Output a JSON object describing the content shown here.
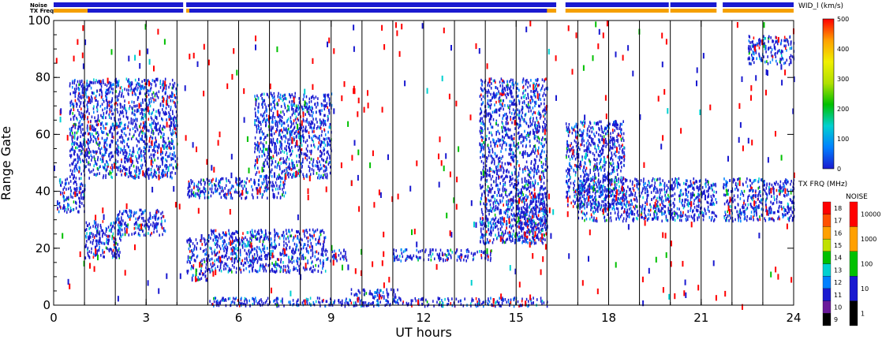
{
  "chart_data": {
    "type": "heatmap",
    "xlabel": "UT hours",
    "ylabel": "Range Gate",
    "xlim": [
      0,
      24
    ],
    "ylim": [
      0,
      100
    ],
    "xticks": [
      "0",
      "3",
      "6",
      "9",
      "12",
      "15",
      "18",
      "21",
      "24"
    ],
    "yticks": [
      "0",
      "20",
      "40",
      "60",
      "80",
      "100"
    ],
    "top_bars": {
      "noise_label": "Noise",
      "txfreq_label": "TX Freq",
      "noise_color": "#1a1ad0",
      "txfreq_color": "#f5a000",
      "segments_hours": [
        [
          0,
          4.2
        ],
        [
          4.3,
          16.3
        ],
        [
          16.6,
          19.95
        ],
        [
          20.0,
          21.5
        ],
        [
          21.7,
          24.0
        ]
      ]
    },
    "scan_boundaries_hours": [
      1.0,
      2.0,
      3.0,
      4.0,
      5.0,
      6.0,
      7.0,
      8.0,
      9.0,
      10.0,
      11.0,
      12.0,
      13.0,
      14.0,
      15.0,
      16.0,
      17.0,
      18.0,
      19.0,
      20.0,
      21.0,
      22.0,
      23.0
    ],
    "data_gaps_hours": [
      [
        16.3,
        16.6
      ],
      [
        21.5,
        21.7
      ]
    ],
    "scatter_regions": [
      {
        "x": [
          0.1,
          1.0
        ],
        "y": [
          33,
          45
        ]
      },
      {
        "x": [
          1.0,
          2.2
        ],
        "y": [
          17,
          30
        ]
      },
      {
        "x": [
          2.0,
          3.6
        ],
        "y": [
          25,
          34
        ]
      },
      {
        "x": [
          0.5,
          4.0
        ],
        "y": [
          45,
          80
        ]
      },
      {
        "x": [
          4.3,
          5.0
        ],
        "y": [
          9,
          24
        ]
      },
      {
        "x": [
          5.0,
          8.8
        ],
        "y": [
          12,
          27
        ]
      },
      {
        "x": [
          8.8,
          9.5
        ],
        "y": [
          16,
          20
        ]
      },
      {
        "x": [
          4.3,
          7.5
        ],
        "y": [
          38,
          45
        ]
      },
      {
        "x": [
          6.5,
          9.0
        ],
        "y": [
          45,
          75
        ]
      },
      {
        "x": [
          9.6,
          11.2
        ],
        "y": [
          3,
          6
        ]
      },
      {
        "x": [
          11.0,
          14.2
        ],
        "y": [
          16,
          20
        ]
      },
      {
        "x": [
          13.8,
          16.0
        ],
        "y": [
          22,
          80
        ]
      },
      {
        "x": [
          15.0,
          16.0
        ],
        "y": [
          25,
          40
        ]
      },
      {
        "x": [
          16.6,
          18.5
        ],
        "y": [
          35,
          65
        ]
      },
      {
        "x": [
          17.0,
          21.5
        ],
        "y": [
          30,
          45
        ]
      },
      {
        "x": [
          21.7,
          24.0
        ],
        "y": [
          30,
          45
        ]
      },
      {
        "x": [
          22.5,
          24.0
        ],
        "y": [
          85,
          95
        ]
      },
      {
        "x": [
          5.0,
          16.0
        ],
        "y": [
          0,
          3
        ]
      }
    ],
    "colorbars": [
      {
        "label": "WID_l (km/s)",
        "ticks": [
          "0",
          "100",
          "200",
          "300",
          "400",
          "500"
        ],
        "range": [
          0,
          500
        ],
        "colors": [
          "#1a1ad0",
          "#0080ff",
          "#00d0d0",
          "#00c000",
          "#b0e000",
          "#f0f000",
          "#ffa000",
          "#ff0000"
        ]
      },
      {
        "label": "TX FRQ (MHz)",
        "ticks": [
          "9",
          "10",
          "11",
          "12",
          "13",
          "14",
          "15",
          "16",
          "17",
          "18"
        ],
        "colors": [
          "#000000",
          "#6a1a9a",
          "#1a1ad0",
          "#0080ff",
          "#00d0d0",
          "#00c000",
          "#c0e000",
          "#ffa000",
          "#ff5000",
          "#ff0000"
        ]
      },
      {
        "label": "NOISE",
        "ticks": [
          "1",
          "10",
          "100",
          "1000",
          "10000"
        ],
        "colors": [
          "#000000",
          "#1a1ad0",
          "#00c000",
          "#ffa000",
          "#ff0000"
        ]
      }
    ]
  }
}
